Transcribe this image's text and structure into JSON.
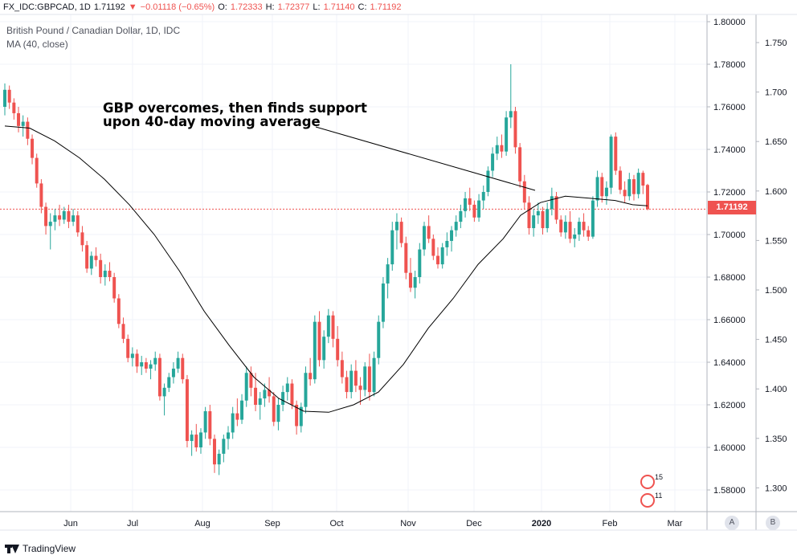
{
  "ohlc": {
    "symbol": "FX_IDC:GBPCAD, 1D",
    "last": "1.71192",
    "change": "−0.01118 (−0.65%)",
    "o_label": "O:",
    "o": "1.72333",
    "h_label": "H:",
    "h": "1.72377",
    "l_label": "L:",
    "l": "1.71140",
    "c_label": "C:",
    "c": "1.71192"
  },
  "legend": {
    "pair": "British Pound / Canadian Dollar, 1D, IDC",
    "ma": "MA (40, close)"
  },
  "annotation": {
    "line1": "GBP overcomes, then finds support",
    "line2": "upon 40-day moving average"
  },
  "price_badge": "1.71192",
  "scale_buttons": {
    "a": "A",
    "b": "B"
  },
  "events": {
    "upper_count": "15",
    "lower_count": "11"
  },
  "footer": {
    "brand": "TradingView"
  },
  "colors": {
    "up": "#26a69a",
    "down": "#ef5350",
    "ma": "#000000",
    "grid": "#f0f3fa",
    "price_line": "#ef5350"
  },
  "chart_data": {
    "type": "candlestick",
    "title": "British Pound / Canadian Dollar, 1D, IDC",
    "xlabel": "",
    "ylabel": "",
    "x_ticks": [
      "Jun",
      "Jul",
      "Aug",
      "Sep",
      "Oct",
      "Nov",
      "Dec",
      "2020",
      "Feb",
      "Mar"
    ],
    "y_left_ticks": [
      "1.80000",
      "1.78000",
      "1.76000",
      "1.74000",
      "1.72000",
      "1.70000",
      "1.68000",
      "1.66000",
      "1.64000",
      "1.62000",
      "1.60000",
      "1.58000"
    ],
    "y_right_ticks": [
      "1.750",
      "1.700",
      "1.650",
      "1.600",
      "1.550",
      "1.500",
      "1.450",
      "1.400",
      "1.350",
      "1.300"
    ],
    "ylim": [
      1.57,
      1.806
    ],
    "last_price": 1.71192,
    "grid": true,
    "ma_period": 40,
    "ma_points": [
      [
        0,
        1.751
      ],
      [
        10,
        1.75
      ],
      [
        20,
        1.744
      ],
      [
        30,
        1.736
      ],
      [
        40,
        1.726
      ],
      [
        50,
        1.714
      ],
      [
        60,
        1.7
      ],
      [
        70,
        1.683
      ],
      [
        80,
        1.664
      ],
      [
        90,
        1.648
      ],
      [
        100,
        1.633
      ],
      [
        110,
        1.623
      ],
      [
        120,
        1.617
      ],
      [
        130,
        1.6165
      ],
      [
        140,
        1.62
      ],
      [
        150,
        1.626
      ],
      [
        160,
        1.639
      ],
      [
        170,
        1.656
      ],
      [
        180,
        1.67
      ],
      [
        190,
        1.686
      ],
      [
        200,
        1.698
      ],
      [
        207,
        1.709
      ],
      [
        215,
        1.715
      ],
      [
        225,
        1.718
      ],
      [
        235,
        1.717
      ],
      [
        245,
        1.716
      ],
      [
        252,
        1.714
      ],
      [
        258,
        1.7135
      ]
    ],
    "candles": [
      [
        1.76,
        1.771,
        1.756,
        1.768
      ],
      [
        1.768,
        1.77,
        1.759,
        1.762
      ],
      [
        1.762,
        1.764,
        1.754,
        1.757
      ],
      [
        1.757,
        1.76,
        1.748,
        1.751
      ],
      [
        1.751,
        1.756,
        1.746,
        1.753
      ],
      [
        1.753,
        1.755,
        1.742,
        1.745
      ],
      [
        1.745,
        1.747,
        1.733,
        1.736
      ],
      [
        1.736,
        1.738,
        1.722,
        1.724
      ],
      [
        1.724,
        1.726,
        1.71,
        1.713
      ],
      [
        1.713,
        1.715,
        1.7,
        1.704
      ],
      [
        1.704,
        1.71,
        1.693,
        1.706
      ],
      [
        1.706,
        1.712,
        1.702,
        1.709
      ],
      [
        1.709,
        1.714,
        1.704,
        1.707
      ],
      [
        1.707,
        1.713,
        1.705,
        1.711
      ],
      [
        1.711,
        1.714,
        1.703,
        1.706
      ],
      [
        1.706,
        1.712,
        1.704,
        1.709
      ],
      [
        1.709,
        1.711,
        1.699,
        1.701
      ],
      [
        1.701,
        1.704,
        1.692,
        1.695
      ],
      [
        1.695,
        1.697,
        1.682,
        1.684
      ],
      [
        1.684,
        1.692,
        1.681,
        1.69
      ],
      [
        1.69,
        1.694,
        1.685,
        1.688
      ],
      [
        1.688,
        1.691,
        1.677,
        1.68
      ],
      [
        1.68,
        1.686,
        1.676,
        1.683
      ],
      [
        1.683,
        1.687,
        1.678,
        1.68
      ],
      [
        1.68,
        1.682,
        1.668,
        1.67
      ],
      [
        1.67,
        1.672,
        1.656,
        1.658
      ],
      [
        1.658,
        1.661,
        1.649,
        1.651
      ],
      [
        1.651,
        1.653,
        1.64,
        1.642
      ],
      [
        1.642,
        1.647,
        1.638,
        1.644
      ],
      [
        1.644,
        1.646,
        1.635,
        1.638
      ],
      [
        1.638,
        1.643,
        1.634,
        1.64
      ],
      [
        1.64,
        1.642,
        1.635,
        1.637
      ],
      [
        1.637,
        1.641,
        1.632,
        1.639
      ],
      [
        1.639,
        1.645,
        1.636,
        1.642
      ],
      [
        1.642,
        1.644,
        1.622,
        1.624
      ],
      [
        1.624,
        1.63,
        1.615,
        1.628
      ],
      [
        1.628,
        1.635,
        1.626,
        1.633
      ],
      [
        1.633,
        1.64,
        1.63,
        1.637
      ],
      [
        1.637,
        1.645,
        1.635,
        1.642
      ],
      [
        1.642,
        1.644,
        1.63,
        1.632
      ],
      [
        1.632,
        1.634,
        1.6,
        1.603
      ],
      [
        1.603,
        1.608,
        1.596,
        1.606
      ],
      [
        1.606,
        1.611,
        1.598,
        1.6
      ],
      [
        1.6,
        1.609,
        1.597,
        1.607
      ],
      [
        1.607,
        1.619,
        1.604,
        1.617
      ],
      [
        1.617,
        1.62,
        1.601,
        1.604
      ],
      [
        1.604,
        1.606,
        1.588,
        1.592
      ],
      [
        1.592,
        1.599,
        1.587,
        1.597
      ],
      [
        1.597,
        1.606,
        1.593,
        1.604
      ],
      [
        1.604,
        1.61,
        1.599,
        1.607
      ],
      [
        1.607,
        1.619,
        1.604,
        1.616
      ],
      [
        1.616,
        1.623,
        1.61,
        1.613
      ],
      [
        1.613,
        1.625,
        1.611,
        1.622
      ],
      [
        1.622,
        1.638,
        1.619,
        1.635
      ],
      [
        1.635,
        1.638,
        1.624,
        1.628
      ],
      [
        1.628,
        1.635,
        1.617,
        1.62
      ],
      [
        1.62,
        1.626,
        1.613,
        1.623
      ],
      [
        1.623,
        1.63,
        1.619,
        1.627
      ],
      [
        1.627,
        1.633,
        1.621,
        1.624
      ],
      [
        1.624,
        1.626,
        1.61,
        1.612
      ],
      [
        1.612,
        1.623,
        1.608,
        1.62
      ],
      [
        1.62,
        1.629,
        1.617,
        1.626
      ],
      [
        1.626,
        1.633,
        1.622,
        1.63
      ],
      [
        1.63,
        1.632,
        1.618,
        1.62
      ],
      [
        1.62,
        1.622,
        1.606,
        1.61
      ],
      [
        1.61,
        1.621,
        1.607,
        1.619
      ],
      [
        1.619,
        1.638,
        1.616,
        1.635
      ],
      [
        1.635,
        1.642,
        1.629,
        1.632
      ],
      [
        1.632,
        1.662,
        1.63,
        1.659
      ],
      [
        1.659,
        1.664,
        1.638,
        1.641
      ],
      [
        1.641,
        1.655,
        1.637,
        1.652
      ],
      [
        1.652,
        1.665,
        1.649,
        1.662
      ],
      [
        1.662,
        1.664,
        1.647,
        1.651
      ],
      [
        1.651,
        1.657,
        1.638,
        1.641
      ],
      [
        1.641,
        1.645,
        1.63,
        1.633
      ],
      [
        1.633,
        1.636,
        1.623,
        1.626
      ],
      [
        1.626,
        1.639,
        1.623,
        1.636
      ],
      [
        1.636,
        1.641,
        1.626,
        1.629
      ],
      [
        1.629,
        1.633,
        1.62,
        1.627
      ],
      [
        1.627,
        1.64,
        1.624,
        1.638
      ],
      [
        1.638,
        1.644,
        1.622,
        1.626
      ],
      [
        1.626,
        1.645,
        1.624,
        1.642
      ],
      [
        1.642,
        1.662,
        1.639,
        1.659
      ],
      [
        1.659,
        1.68,
        1.656,
        1.677
      ],
      [
        1.677,
        1.689,
        1.67,
        1.686
      ],
      [
        1.686,
        1.706,
        1.683,
        1.702
      ],
      [
        1.702,
        1.71,
        1.693,
        1.706
      ],
      [
        1.706,
        1.708,
        1.694,
        1.696
      ],
      [
        1.696,
        1.699,
        1.679,
        1.682
      ],
      [
        1.682,
        1.689,
        1.673,
        1.675
      ],
      [
        1.675,
        1.683,
        1.67,
        1.68
      ],
      [
        1.68,
        1.696,
        1.677,
        1.693
      ],
      [
        1.693,
        1.706,
        1.69,
        1.704
      ],
      [
        1.704,
        1.709,
        1.696,
        1.698
      ],
      [
        1.698,
        1.7,
        1.688,
        1.69
      ],
      [
        1.69,
        1.694,
        1.684,
        1.686
      ],
      [
        1.686,
        1.696,
        1.684,
        1.694
      ],
      [
        1.694,
        1.701,
        1.69,
        1.697
      ],
      [
        1.697,
        1.704,
        1.692,
        1.702
      ],
      [
        1.702,
        1.709,
        1.699,
        1.706
      ],
      [
        1.706,
        1.714,
        1.703,
        1.711
      ],
      [
        1.711,
        1.72,
        1.708,
        1.717
      ],
      [
        1.717,
        1.722,
        1.711,
        1.714
      ],
      [
        1.714,
        1.716,
        1.706,
        1.708
      ],
      [
        1.708,
        1.719,
        1.706,
        1.716
      ],
      [
        1.716,
        1.723,
        1.712,
        1.72
      ],
      [
        1.72,
        1.732,
        1.718,
        1.73
      ],
      [
        1.73,
        1.741,
        1.727,
        1.738
      ],
      [
        1.738,
        1.746,
        1.735,
        1.742
      ],
      [
        1.742,
        1.747,
        1.736,
        1.739
      ],
      [
        1.739,
        1.758,
        1.737,
        1.755
      ],
      [
        1.755,
        1.78,
        1.75,
        1.758
      ],
      [
        1.758,
        1.76,
        1.738,
        1.741
      ],
      [
        1.741,
        1.743,
        1.722,
        1.725
      ],
      [
        1.725,
        1.728,
        1.712,
        1.715
      ],
      [
        1.715,
        1.718,
        1.7,
        1.703
      ],
      [
        1.703,
        1.712,
        1.699,
        1.709
      ],
      [
        1.709,
        1.715,
        1.705,
        1.711
      ],
      [
        1.711,
        1.713,
        1.7,
        1.703
      ],
      [
        1.703,
        1.715,
        1.701,
        1.712
      ],
      [
        1.712,
        1.722,
        1.709,
        1.718
      ],
      [
        1.718,
        1.72,
        1.705,
        1.707
      ],
      [
        1.707,
        1.709,
        1.699,
        1.701
      ],
      [
        1.701,
        1.709,
        1.698,
        1.706
      ],
      [
        1.706,
        1.711,
        1.696,
        1.698
      ],
      [
        1.698,
        1.703,
        1.694,
        1.7
      ],
      [
        1.7,
        1.708,
        1.697,
        1.706
      ],
      [
        1.706,
        1.71,
        1.699,
        1.702
      ],
      [
        1.702,
        1.704,
        1.697,
        1.699
      ],
      [
        1.699,
        1.718,
        1.698,
        1.716
      ],
      [
        1.716,
        1.73,
        1.713,
        1.727
      ],
      [
        1.727,
        1.729,
        1.715,
        1.718
      ],
      [
        1.718,
        1.725,
        1.714,
        1.722
      ],
      [
        1.722,
        1.747,
        1.719,
        1.746
      ],
      [
        1.746,
        1.748,
        1.728,
        1.73
      ],
      [
        1.73,
        1.732,
        1.719,
        1.721
      ],
      [
        1.721,
        1.725,
        1.715,
        1.718
      ],
      [
        1.718,
        1.729,
        1.716,
        1.726
      ],
      [
        1.726,
        1.728,
        1.716,
        1.719
      ],
      [
        1.719,
        1.731,
        1.717,
        1.729
      ],
      [
        1.729,
        1.73,
        1.719,
        1.723
      ],
      [
        1.7233,
        1.7238,
        1.7114,
        1.7119
      ]
    ]
  }
}
